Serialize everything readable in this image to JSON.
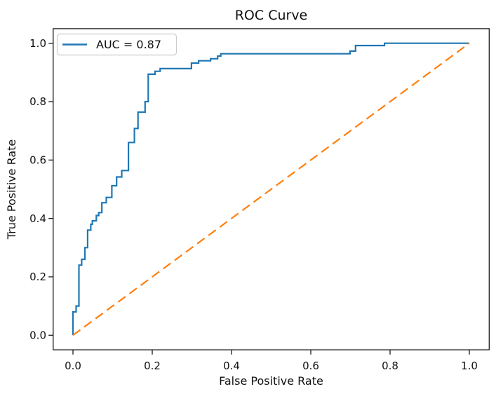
{
  "chart_data": {
    "type": "line",
    "title": "ROC Curve",
    "xlabel": "False Positive Rate",
    "ylabel": "True Positive Rate",
    "xlim": [
      0.0,
      1.0
    ],
    "ylim": [
      0.0,
      1.0
    ],
    "x_ticks": [
      "0.0",
      "0.2",
      "0.4",
      "0.6",
      "0.8",
      "1.0"
    ],
    "y_ticks": [
      "0.0",
      "0.2",
      "0.4",
      "0.6",
      "0.8",
      "1.0"
    ],
    "grid": false,
    "auc": 0.87,
    "legend": {
      "position": "upper left",
      "entries": [
        {
          "label": "AUC = 0.87",
          "color": "#1f77b4"
        }
      ]
    },
    "series": [
      {
        "id": "roc-curve-line",
        "name": "ROC curve",
        "color": "#1f77b4",
        "line_style": "solid",
        "line_width": 2.2,
        "points": [
          [
            0.0,
            0.0
          ],
          [
            0.0,
            0.08
          ],
          [
            0.008,
            0.08
          ],
          [
            0.008,
            0.1
          ],
          [
            0.015,
            0.1
          ],
          [
            0.015,
            0.24
          ],
          [
            0.022,
            0.24
          ],
          [
            0.022,
            0.26
          ],
          [
            0.03,
            0.26
          ],
          [
            0.03,
            0.3
          ],
          [
            0.037,
            0.3
          ],
          [
            0.037,
            0.36
          ],
          [
            0.045,
            0.36
          ],
          [
            0.045,
            0.38
          ],
          [
            0.049,
            0.38
          ],
          [
            0.049,
            0.392
          ],
          [
            0.059,
            0.392
          ],
          [
            0.059,
            0.41
          ],
          [
            0.065,
            0.41
          ],
          [
            0.065,
            0.42
          ],
          [
            0.073,
            0.42
          ],
          [
            0.073,
            0.454
          ],
          [
            0.084,
            0.454
          ],
          [
            0.084,
            0.472
          ],
          [
            0.098,
            0.472
          ],
          [
            0.098,
            0.512
          ],
          [
            0.11,
            0.512
          ],
          [
            0.11,
            0.542
          ],
          [
            0.123,
            0.542
          ],
          [
            0.123,
            0.564
          ],
          [
            0.14,
            0.564
          ],
          [
            0.14,
            0.66
          ],
          [
            0.155,
            0.66
          ],
          [
            0.155,
            0.708
          ],
          [
            0.164,
            0.708
          ],
          [
            0.164,
            0.764
          ],
          [
            0.182,
            0.764
          ],
          [
            0.182,
            0.8
          ],
          [
            0.19,
            0.8
          ],
          [
            0.19,
            0.894
          ],
          [
            0.207,
            0.894
          ],
          [
            0.207,
            0.904
          ],
          [
            0.22,
            0.904
          ],
          [
            0.22,
            0.913
          ],
          [
            0.299,
            0.913
          ],
          [
            0.299,
            0.932
          ],
          [
            0.317,
            0.932
          ],
          [
            0.317,
            0.94
          ],
          [
            0.347,
            0.94
          ],
          [
            0.347,
            0.947
          ],
          [
            0.365,
            0.947
          ],
          [
            0.365,
            0.956
          ],
          [
            0.373,
            0.956
          ],
          [
            0.373,
            0.964
          ],
          [
            0.699,
            0.964
          ],
          [
            0.699,
            0.973
          ],
          [
            0.713,
            0.973
          ],
          [
            0.713,
            0.992
          ],
          [
            0.786,
            0.992
          ],
          [
            0.786,
            1.0
          ],
          [
            1.0,
            1.0
          ]
        ]
      },
      {
        "id": "chance-diagonal-line",
        "name": "chance diagonal",
        "color": "#ff7f0e",
        "line_style": "dashed",
        "line_width": 2.2,
        "points": [
          [
            0.0,
            0.0
          ],
          [
            1.0,
            1.0
          ]
        ]
      }
    ]
  }
}
